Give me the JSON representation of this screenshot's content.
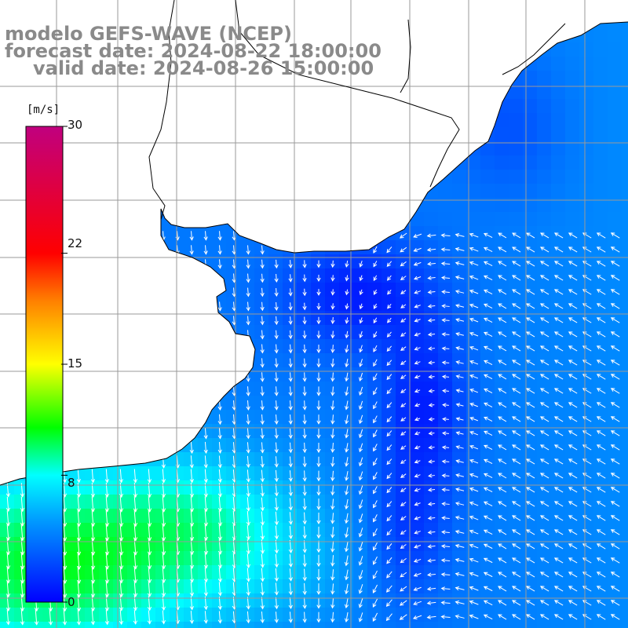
{
  "title": {
    "line1": "modelo GEFS-WAVE (NCEP)",
    "line2": "forecast date: 2024-08-22 18:00:00",
    "line3": "valid date: 2024-08-26 15:00:00"
  },
  "colorbar": {
    "units": "[m/s]",
    "ticks": [
      "30",
      "22",
      "15",
      "8",
      "0"
    ],
    "tick_values": [
      30,
      22,
      15,
      8,
      0
    ],
    "range": [
      0,
      30
    ],
    "stops": [
      {
        "value": 0,
        "color": "#0000ff"
      },
      {
        "value": 5,
        "color": "#0096ff"
      },
      {
        "value": 8,
        "color": "#00ffff"
      },
      {
        "value": 11,
        "color": "#00ff00"
      },
      {
        "value": 15,
        "color": "#ffff00"
      },
      {
        "value": 19,
        "color": "#ff8000"
      },
      {
        "value": 22,
        "color": "#ff0000"
      },
      {
        "value": 30,
        "color": "#c0007f"
      }
    ]
  },
  "map": {
    "field": "wind speed and direction",
    "land_color": "#ffffff",
    "grid_color": "#9a9a9a",
    "coast_color": "#000000",
    "arrow_color": "#ffffff"
  }
}
